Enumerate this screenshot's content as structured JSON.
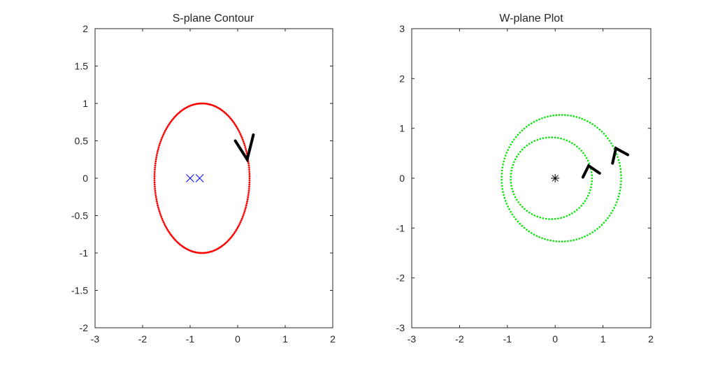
{
  "chart_data": [
    {
      "type": "scatter",
      "title": "S-plane Contour",
      "xlabel": "",
      "ylabel": "",
      "xlim": [
        -3,
        2
      ],
      "ylim": [
        -2,
        2
      ],
      "xticks": [
        "-3",
        "-2",
        "-1",
        "0",
        "1",
        "2"
      ],
      "yticks": [
        "-2",
        "-1.5",
        "-1",
        "-0.5",
        "0",
        "0.5",
        "1",
        "1.5",
        "2"
      ],
      "grid": false,
      "series": [
        {
          "kind": "contour",
          "marker": "dot",
          "color": "#ff0000",
          "ellipse": {
            "cx": -0.75,
            "cy": 0,
            "rx": 1.0,
            "ry": 1.0
          }
        },
        {
          "kind": "poles",
          "marker": "x",
          "color": "#0000ff",
          "points": [
            {
              "x": -1,
              "y": 0
            },
            {
              "x": -0.8,
              "y": 0
            }
          ]
        }
      ],
      "direction_arrows": [
        {
          "tip": [
            0.2,
            0.25
          ],
          "arm1": [
            -0.05,
            0.5
          ],
          "arm2": [
            0.33,
            0.58
          ]
        }
      ]
    },
    {
      "type": "scatter",
      "title": "W-plane Plot",
      "xlabel": "",
      "ylabel": "",
      "xlim": [
        -3,
        2
      ],
      "ylim": [
        -3,
        3
      ],
      "xticks": [
        "-3",
        "-2",
        "-1",
        "0",
        "1",
        "2"
      ],
      "yticks": [
        "-3",
        "-2",
        "-1",
        "0",
        "1",
        "2",
        "3"
      ],
      "grid": false,
      "series": [
        {
          "kind": "contour",
          "marker": "dot",
          "color": "#00e600",
          "ellipse": {
            "cx": -0.08,
            "cy": 0,
            "rx": 0.85,
            "ry": 0.82
          }
        },
        {
          "kind": "contour",
          "marker": "dot",
          "color": "#00e600",
          "ellipse": {
            "cx": 0.13,
            "cy": 0,
            "rx": 1.25,
            "ry": 1.27
          }
        },
        {
          "kind": "critical_point",
          "marker": "asterisk",
          "color": "#000000",
          "points": [
            {
              "x": 0,
              "y": 0
            }
          ]
        }
      ],
      "direction_arrows": [
        {
          "tip": [
            0.7,
            0.25
          ],
          "arm1": [
            0.58,
            0.02
          ],
          "arm2": [
            0.93,
            0.1
          ]
        },
        {
          "tip": [
            1.27,
            0.6
          ],
          "arm1": [
            1.2,
            0.3
          ],
          "arm2": [
            1.52,
            0.47
          ]
        }
      ]
    }
  ]
}
